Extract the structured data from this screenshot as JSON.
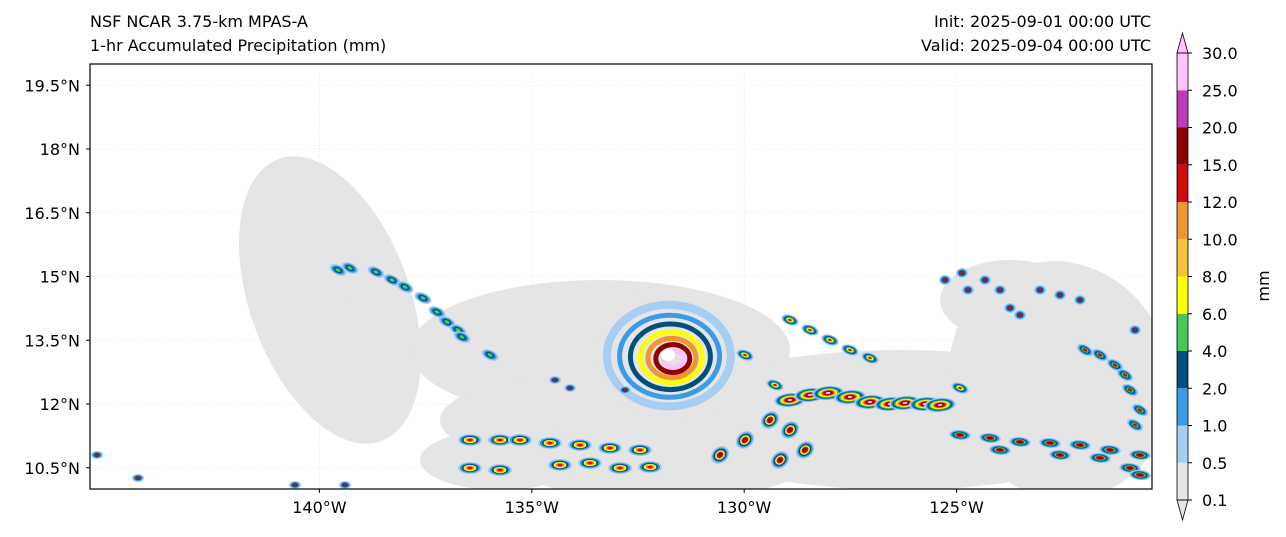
{
  "header": {
    "model": "NSF NCAR 3.75-km MPAS-A",
    "field": "1-hr Accumulated Precipitation (mm)",
    "init": "Init: 2025-09-01 00:00 UTC",
    "valid": "Valid: 2025-09-04 00:00 UTC"
  },
  "map": {
    "lon_range": [
      -145.4,
      -120.4
    ],
    "lat_range": [
      10.0,
      20.0
    ],
    "lat_ticks": [
      {
        "value": 19.5,
        "label": "19.5°N"
      },
      {
        "value": 18.0,
        "label": "18°N"
      },
      {
        "value": 16.5,
        "label": "16.5°N"
      },
      {
        "value": 15.0,
        "label": "15°N"
      },
      {
        "value": 13.5,
        "label": "13.5°N"
      },
      {
        "value": 12.0,
        "label": "12°N"
      },
      {
        "value": 10.5,
        "label": "10.5°N"
      }
    ],
    "lon_ticks": [
      {
        "value": -140,
        "label": "140°W"
      },
      {
        "value": -135,
        "label": "135°W"
      },
      {
        "value": -130,
        "label": "130°W"
      },
      {
        "value": -125,
        "label": "125°W"
      }
    ]
  },
  "colorbar": {
    "unit": "mm",
    "levels": [
      "0.1",
      "0.5",
      "1.0",
      "2.0",
      "4.0",
      "6.0",
      "8.0",
      "10.0",
      "12.0",
      "15.0",
      "20.0",
      "25.0",
      "30.0"
    ],
    "colors": [
      "#e5e5e5",
      "#a6cdf2",
      "#3b9be8",
      "#00507f",
      "#45c75b",
      "#ffff00",
      "#f7c13b",
      "#ef9633",
      "#cf0a0a",
      "#8f0000",
      "#bd3bbd",
      "#ffc2ff"
    ]
  }
}
